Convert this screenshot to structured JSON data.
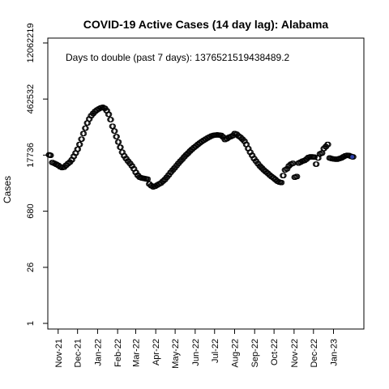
{
  "chart_data": {
    "type": "scatter",
    "title": "COVID-19 Active Cases (14 day lag): Alabama",
    "ylabel": "Cases",
    "xlabel": "",
    "y_scale": "log",
    "y_ticks": [
      "1",
      "26",
      "680",
      "17736",
      "462532",
      "12062219"
    ],
    "y_tick_values": [
      1,
      26,
      680,
      17736,
      462532,
      12062219
    ],
    "ylim": [
      0.72,
      16000000
    ],
    "x_ticks": [
      "Nov-21",
      "Dec-21",
      "Jan-22",
      "Feb-22",
      "Mar-22",
      "Apr-22",
      "May-22",
      "Jun-22",
      "Jul-22",
      "Aug-22",
      "Sep-22",
      "Oct-22",
      "Nov-22",
      "Dec-22",
      "Jan-23"
    ],
    "x_tick_dates": [
      "2021-11-01",
      "2021-12-01",
      "2022-01-01",
      "2022-02-01",
      "2022-03-01",
      "2022-04-01",
      "2022-05-01",
      "2022-06-01",
      "2022-07-01",
      "2022-08-01",
      "2022-09-01",
      "2022-10-01",
      "2022-11-01",
      "2022-12-01",
      "2023-01-01"
    ],
    "xlim": [
      "2021-10-16",
      "2023-02-17"
    ],
    "annotation": "Days to double (past 7 days): 1376521519438489.2",
    "grid": false,
    "legend": "none",
    "marker": "open-circle",
    "series": [
      {
        "points": [
          [
            "2021-10-17",
            18000
          ],
          [
            "2021-10-19",
            17500
          ],
          [
            "2021-10-22",
            11500
          ],
          [
            "2021-10-25",
            11000
          ],
          [
            "2021-10-28",
            10400
          ],
          [
            "2021-10-31",
            9800
          ],
          [
            "2021-11-03",
            9000
          ],
          [
            "2021-11-06",
            8600
          ],
          [
            "2021-11-09",
            8800
          ],
          [
            "2021-11-12",
            9800
          ],
          [
            "2021-11-15",
            10800
          ],
          [
            "2021-11-18",
            11800
          ],
          [
            "2021-11-21",
            13500
          ],
          [
            "2021-11-24",
            16500
          ],
          [
            "2021-11-27",
            20000
          ],
          [
            "2021-11-30",
            25000
          ],
          [
            "2021-12-03",
            33000
          ],
          [
            "2021-12-06",
            45000
          ],
          [
            "2021-12-09",
            62000
          ],
          [
            "2021-12-12",
            85000
          ],
          [
            "2021-12-15",
            115000
          ],
          [
            "2021-12-18",
            145000
          ],
          [
            "2021-12-21",
            175000
          ],
          [
            "2021-12-24",
            200000
          ],
          [
            "2021-12-27",
            225000
          ],
          [
            "2021-12-30",
            245000
          ],
          [
            "2022-01-02",
            262000
          ],
          [
            "2022-01-05",
            278000
          ],
          [
            "2022-01-08",
            285000
          ],
          [
            "2022-01-11",
            270000
          ],
          [
            "2022-01-14",
            235000
          ],
          [
            "2022-01-17",
            190000
          ],
          [
            "2022-01-20",
            140000
          ],
          [
            "2022-01-23",
            95000
          ],
          [
            "2022-01-26",
            72000
          ],
          [
            "2022-01-29",
            52000
          ],
          [
            "2022-02-01",
            38000
          ],
          [
            "2022-02-04",
            28000
          ],
          [
            "2022-02-07",
            21000
          ],
          [
            "2022-02-10",
            17000
          ],
          [
            "2022-02-13",
            14500
          ],
          [
            "2022-02-16",
            12500
          ],
          [
            "2022-02-19",
            11000
          ],
          [
            "2022-02-22",
            9500
          ],
          [
            "2022-02-25",
            8000
          ],
          [
            "2022-02-28",
            6500
          ],
          [
            "2022-03-03",
            5500
          ],
          [
            "2022-03-06",
            4900
          ],
          [
            "2022-03-09",
            4700
          ],
          [
            "2022-03-12",
            4600
          ],
          [
            "2022-03-15",
            4500
          ],
          [
            "2022-03-18",
            4400
          ],
          [
            "2022-03-21",
            3300
          ],
          [
            "2022-03-24",
            3000
          ],
          [
            "2022-03-27",
            2800
          ],
          [
            "2022-03-30",
            2900
          ],
          [
            "2022-04-02",
            3100
          ],
          [
            "2022-04-05",
            3300
          ],
          [
            "2022-04-08",
            3500
          ],
          [
            "2022-04-11",
            3900
          ],
          [
            "2022-04-14",
            4300
          ],
          [
            "2022-04-17",
            4900
          ],
          [
            "2022-04-20",
            5600
          ],
          [
            "2022-04-23",
            6500
          ],
          [
            "2022-04-26",
            7400
          ],
          [
            "2022-04-29",
            8400
          ],
          [
            "2022-05-02",
            9600
          ],
          [
            "2022-05-05",
            11000
          ],
          [
            "2022-05-08",
            12500
          ],
          [
            "2022-05-11",
            14000
          ],
          [
            "2022-05-14",
            16000
          ],
          [
            "2022-05-17",
            18000
          ],
          [
            "2022-05-20",
            20000
          ],
          [
            "2022-05-23",
            22500
          ],
          [
            "2022-05-26",
            25000
          ],
          [
            "2022-05-29",
            27500
          ],
          [
            "2022-06-01",
            30000
          ],
          [
            "2022-06-04",
            33000
          ],
          [
            "2022-06-07",
            36000
          ],
          [
            "2022-06-10",
            39000
          ],
          [
            "2022-06-13",
            42000
          ],
          [
            "2022-06-16",
            45000
          ],
          [
            "2022-06-19",
            48000
          ],
          [
            "2022-06-22",
            51000
          ],
          [
            "2022-06-25",
            54000
          ],
          [
            "2022-06-28",
            56000
          ],
          [
            "2022-07-01",
            57000
          ],
          [
            "2022-07-04",
            57500
          ],
          [
            "2022-07-07",
            57000
          ],
          [
            "2022-07-10",
            56000
          ],
          [
            "2022-07-13",
            51000
          ],
          [
            "2022-07-16",
            44000
          ],
          [
            "2022-07-19",
            46000
          ],
          [
            "2022-07-22",
            50000
          ],
          [
            "2022-07-25",
            52000
          ],
          [
            "2022-07-28",
            55000
          ],
          [
            "2022-07-31",
            62000
          ],
          [
            "2022-08-03",
            60000
          ],
          [
            "2022-08-06",
            54000
          ],
          [
            "2022-08-09",
            50000
          ],
          [
            "2022-08-12",
            45000
          ],
          [
            "2022-08-15",
            40000
          ],
          [
            "2022-08-18",
            33000
          ],
          [
            "2022-08-21",
            26000
          ],
          [
            "2022-08-24",
            21000
          ],
          [
            "2022-08-27",
            17500
          ],
          [
            "2022-08-30",
            14500
          ],
          [
            "2022-09-02",
            12500
          ],
          [
            "2022-09-05",
            10800
          ],
          [
            "2022-09-08",
            9400
          ],
          [
            "2022-09-11",
            8400
          ],
          [
            "2022-09-14",
            7500
          ],
          [
            "2022-09-17",
            6800
          ],
          [
            "2022-09-20",
            6200
          ],
          [
            "2022-09-23",
            5600
          ],
          [
            "2022-09-26",
            5100
          ],
          [
            "2022-09-29",
            4700
          ],
          [
            "2022-10-02",
            4300
          ],
          [
            "2022-10-05",
            3900
          ],
          [
            "2022-10-08",
            3700
          ],
          [
            "2022-10-11",
            3600
          ],
          [
            "2022-10-14",
            5400
          ],
          [
            "2022-10-17",
            7500
          ],
          [
            "2022-10-20",
            8000
          ],
          [
            "2022-10-23",
            9500
          ],
          [
            "2022-10-26",
            10500
          ],
          [
            "2022-10-29",
            11000
          ],
          [
            "2022-11-01",
            4900
          ],
          [
            "2022-11-04",
            5100
          ],
          [
            "2022-11-07",
            11200
          ],
          [
            "2022-11-10",
            11800
          ],
          [
            "2022-11-13",
            12500
          ],
          [
            "2022-11-16",
            13000
          ],
          [
            "2022-11-19",
            14000
          ],
          [
            "2022-11-22",
            15500
          ],
          [
            "2022-11-25",
            16000
          ],
          [
            "2022-11-28",
            16000
          ],
          [
            "2022-12-01",
            15800
          ],
          [
            "2022-12-04",
            10500
          ],
          [
            "2022-12-07",
            15000
          ],
          [
            "2022-12-10",
            19000
          ],
          [
            "2022-12-13",
            20000
          ],
          [
            "2022-12-16",
            26000
          ],
          [
            "2022-12-19",
            29000
          ],
          [
            "2022-12-22",
            33000
          ],
          [
            "2022-12-25",
            15000
          ],
          [
            "2022-12-28",
            14500
          ],
          [
            "2022-12-31",
            14200
          ],
          [
            "2023-01-03",
            14000
          ],
          [
            "2023-01-06",
            14000
          ],
          [
            "2023-01-09",
            14500
          ],
          [
            "2023-01-12",
            15000
          ],
          [
            "2023-01-15",
            16000
          ],
          [
            "2023-01-18",
            17000
          ],
          [
            "2023-01-21",
            17500
          ],
          [
            "2023-01-24",
            17300
          ],
          [
            "2023-01-27",
            16500
          ],
          [
            "2023-01-30",
            16000
          ]
        ]
      }
    ]
  }
}
